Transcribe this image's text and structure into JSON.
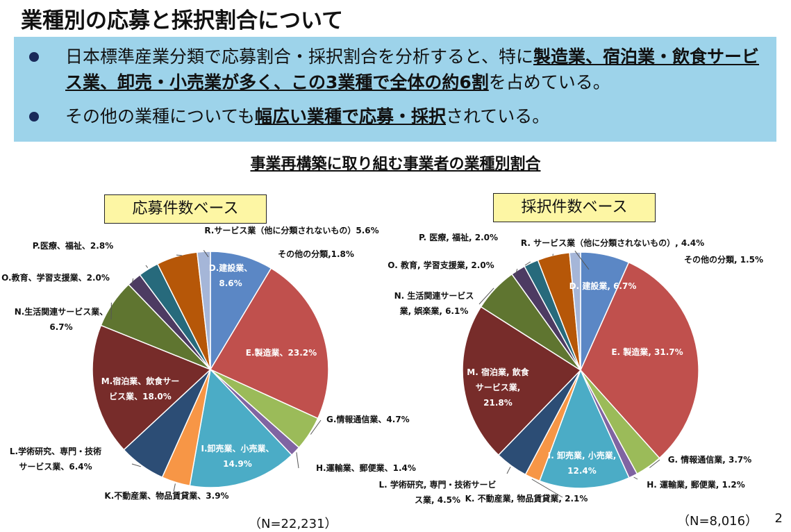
{
  "title": "業種別の応募と採択割合について",
  "bullets": [
    {
      "pre": "日本標準産業分類で応募割合・採択割合を分析すると、特に",
      "em1": "製造業、宿泊業・飲食サービス業、卸売・小売業が多く、この3業種で全体の約6割",
      "post": "を占めている。"
    },
    {
      "pre": "その他の業種についても",
      "em1": "幅広い業種で応募・採択",
      "post": "されている。"
    }
  ],
  "subtitle": "事業再構築に取り組む事業者の業種別割合",
  "page_number": "2",
  "colors": {
    "blue": "#5b87c5",
    "red": "#c0504d",
    "green": "#9bbb59",
    "purple": "#8064a2",
    "teal": "#4bacc6",
    "orange": "#f79646",
    "navy": "#2c4d75",
    "maroon": "#772c2a",
    "olive": "#5f7530",
    "darkpurple": "#4d3b62",
    "darkteal": "#276a7c",
    "brown": "#b65708",
    "lightblue": "#a5b6d8"
  },
  "chart_data": [
    {
      "type": "pie",
      "title": "応募件数ベース",
      "n_label": "（N=22,231）",
      "slices": [
        {
          "label": "D.建設業、8.6%",
          "value": 8.6,
          "color": "#5b87c5"
        },
        {
          "label": "E.製造業、23.2%",
          "value": 23.2,
          "color": "#c0504d"
        },
        {
          "label": "G.情報通信業、4.7%",
          "value": 4.7,
          "color": "#9bbb59"
        },
        {
          "label": "H.運輸業、郵便業、1.4%",
          "value": 1.4,
          "color": "#8064a2"
        },
        {
          "label": "I.卸売業、小売業、14.9%",
          "value": 14.9,
          "color": "#4bacc6"
        },
        {
          "label": "K.不動産業、物品賃貸業、3.9%",
          "value": 3.9,
          "color": "#f79646"
        },
        {
          "label": "L.学術研究、専門・技術サービス業、6.4%",
          "value": 6.4,
          "color": "#2c4d75"
        },
        {
          "label": "M.宿泊業、飲食サービス業、18.0%",
          "value": 18.0,
          "color": "#772c2a"
        },
        {
          "label": "N.生活関連サービス業、6.7%",
          "value": 6.7,
          "color": "#5f7530"
        },
        {
          "label": "O.教育、学習支援業、2.0%",
          "value": 2.0,
          "color": "#4d3b62"
        },
        {
          "label": "P.医療、福祉、2.8%",
          "value": 2.8,
          "color": "#276a7c"
        },
        {
          "label": "R.サービス業（他に分類されないもの）5.6%",
          "value": 5.6,
          "color": "#b65708"
        },
        {
          "label": "その他の分類,1.8%",
          "value": 1.8,
          "color": "#a5b6d8"
        }
      ]
    },
    {
      "type": "pie",
      "title": "採択件数ベース",
      "n_label": "（N=8,016）",
      "slices": [
        {
          "label": "D. 建設業, 6.7%",
          "value": 6.7,
          "color": "#5b87c5"
        },
        {
          "label": "E. 製造業, 31.7%",
          "value": 31.7,
          "color": "#c0504d"
        },
        {
          "label": "G. 情報通信業, 3.7%",
          "value": 3.7,
          "color": "#9bbb59"
        },
        {
          "label": "H. 運輸業, 郵便業, 1.2%",
          "value": 1.2,
          "color": "#8064a2"
        },
        {
          "label": "I. 卸売業, 小売業, 12.4%",
          "value": 12.4,
          "color": "#4bacc6"
        },
        {
          "label": "K. 不動産業, 物品賃貸業, 2.1%",
          "value": 2.1,
          "color": "#f79646"
        },
        {
          "label": "L. 学術研究, 専門・技術サービス業, 4.5%",
          "value": 4.5,
          "color": "#2c4d75"
        },
        {
          "label": "M. 宿泊業, 飲食サービス業, 21.8%",
          "value": 21.8,
          "color": "#772c2a"
        },
        {
          "label": "N. 生活関連サービス業, 娯楽業, 6.1%",
          "value": 6.1,
          "color": "#5f7530"
        },
        {
          "label": "O. 教育, 学習支援業, 2.0%",
          "value": 2.0,
          "color": "#4d3b62"
        },
        {
          "label": "P. 医療, 福祉, 2.0%",
          "value": 2.0,
          "color": "#276a7c"
        },
        {
          "label": "R. サービス業（他に分類されないもの）, 4.4%",
          "value": 4.4,
          "color": "#b65708"
        },
        {
          "label": "その他の分類, 1.5%",
          "value": 1.5,
          "color": "#a5b6d8"
        }
      ]
    }
  ]
}
